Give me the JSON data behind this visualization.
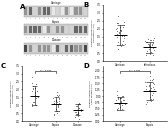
{
  "figure_bg": "#ffffff",
  "panel_A": {
    "label": "A",
    "strip_titles": [
      "Carriage",
      "Sepsis",
      "Disease"
    ],
    "strip_bg": "#e8e8e8",
    "band_colors": [
      "#888888",
      "#444444",
      "#222222"
    ],
    "n_lanes": 14
  },
  "panel_B": {
    "label": "B",
    "groups": [
      "Carriage",
      "Infectious\nDisease"
    ],
    "ylabel": "Relative expression of\nSbi protein (AU)",
    "group1_mean": 1.6,
    "group1_sd": 0.6,
    "group2_mean": 0.85,
    "group2_sd": 0.35,
    "ylim": [
      0,
      3.5
    ],
    "n_dots": 30
  },
  "panel_C": {
    "label": "C",
    "groups": [
      "Carriage",
      "Sepsis",
      "Disease"
    ],
    "ylabel": "Relative expression of\nSbi protein (AU)",
    "p_text": "p = 0.038",
    "group1_mean": 1.6,
    "group1_sd": 0.6,
    "group2_mean": 1.05,
    "group2_sd": 0.45,
    "group3_mean": 0.7,
    "group3_sd": 0.35,
    "ylim": [
      0,
      3.5
    ],
    "n_dots": 25
  },
  "panel_D": {
    "label": "D",
    "groups": [
      "Carriage",
      "Sepsis"
    ],
    "ylabel": "Relative expression of\nSaeR protein (AU)",
    "p_text": "p = 0.038",
    "group1_mean": 0.7,
    "group1_sd": 0.25,
    "group2_mean": 1.2,
    "group2_sd": 0.35,
    "ylim": [
      0,
      2.2
    ],
    "n_dots": 25
  },
  "dot_color": "#666666",
  "dot_size": 0.5,
  "mean_lw": 0.7,
  "sd_lw": 0.4
}
